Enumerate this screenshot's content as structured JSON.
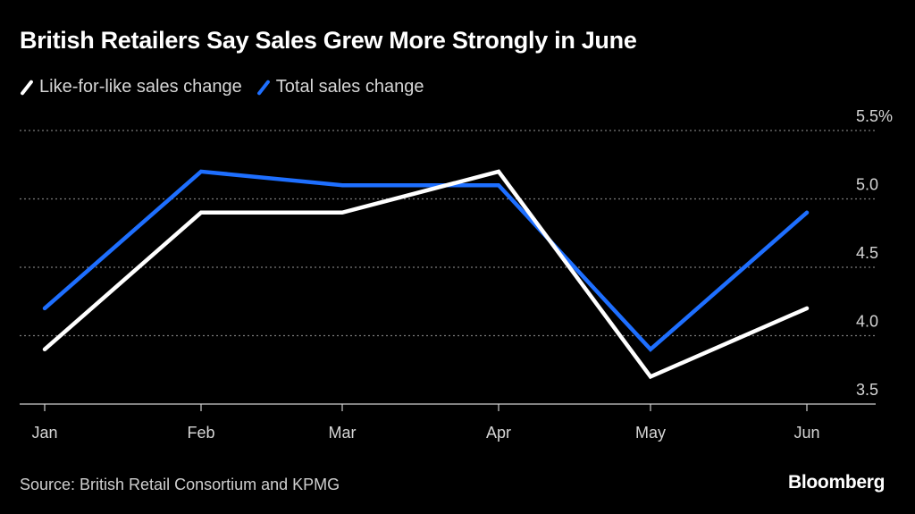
{
  "chart_data": {
    "type": "line",
    "title": "British Retailers Say Sales Grew More Strongly in June",
    "xlabel": "",
    "ylabel": "",
    "categories": [
      "Jan",
      "Feb",
      "Mar",
      "Apr",
      "May",
      "Jun"
    ],
    "series": [
      {
        "name": "Like-for-like sales change",
        "color": "#ffffff",
        "values": [
          3.9,
          4.9,
          4.9,
          5.2,
          3.7,
          4.2
        ]
      },
      {
        "name": "Total sales change",
        "color": "#1e6fff",
        "values": [
          4.2,
          5.2,
          5.1,
          5.1,
          3.9,
          4.9
        ]
      }
    ],
    "ylim": [
      3.5,
      5.5
    ],
    "yticks": [
      {
        "value": 5.5,
        "label": "5.5%"
      },
      {
        "value": 5.0,
        "label": "5.0"
      },
      {
        "value": 4.5,
        "label": "4.5"
      },
      {
        "value": 4.0,
        "label": "4.0"
      },
      {
        "value": 3.5,
        "label": "3.5"
      }
    ],
    "grid": true,
    "y_axis_side": "right",
    "legend_position": "top-left",
    "source": "Source: British Retail Consortium and KPMG",
    "brand": "Bloomberg"
  }
}
